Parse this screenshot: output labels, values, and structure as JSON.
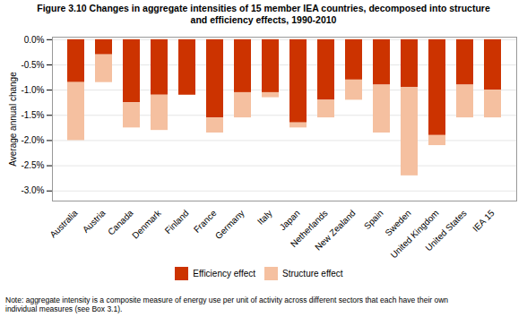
{
  "chart_data": {
    "type": "bar",
    "title": "Figure 3.10  Changes in aggregate intensities of 15 member IEA countries, decomposed into structure\nand efficiency effects, 1990-2010",
    "ylabel": "Average annual change",
    "caption": "Note: aggregate intensity is a composite measure of energy use per unit of activity across different sectors that each have their own\nindividual measures (see Box 3.1).",
    "categories": [
      "Australia",
      "Austria",
      "Canada",
      "Denmark",
      "Finland",
      "France",
      "Germany",
      "Italy",
      "Japan",
      "Netherlands",
      "New Zealand",
      "Spain",
      "Sweden",
      "United Kingdom",
      "United States",
      "IEA 15"
    ],
    "series": [
      {
        "name": "Efficiency effect",
        "color": "#cc3300",
        "values": [
          -0.85,
          -0.3,
          -1.25,
          -1.1,
          -1.1,
          -1.55,
          -1.05,
          -1.05,
          -1.65,
          -1.2,
          -0.8,
          -0.9,
          -0.95,
          -1.9,
          -0.9,
          -1.0
        ]
      },
      {
        "name": "Structure effect",
        "color": "#f5c0a0",
        "values": [
          -1.15,
          -0.55,
          -0.5,
          -0.7,
          0.0,
          -0.3,
          -0.5,
          -0.1,
          -0.1,
          -0.35,
          -0.4,
          -0.95,
          -1.75,
          -0.2,
          -0.65,
          -0.55
        ]
      }
    ],
    "stacked": true,
    "ylim": [
      -3.2,
      0.05
    ],
    "yticks": [
      {
        "value": 0.0,
        "label": "0.0%"
      },
      {
        "value": -0.5,
        "label": "-0.5%"
      },
      {
        "value": -1.0,
        "label": "-1.0%"
      },
      {
        "value": -1.5,
        "label": "-1.5%"
      },
      {
        "value": -2.0,
        "label": "-2.0%"
      },
      {
        "value": -2.5,
        "label": "-2.5%"
      },
      {
        "value": -3.0,
        "label": "-3.0%"
      }
    ],
    "grid": true,
    "legend": "bottom"
  }
}
